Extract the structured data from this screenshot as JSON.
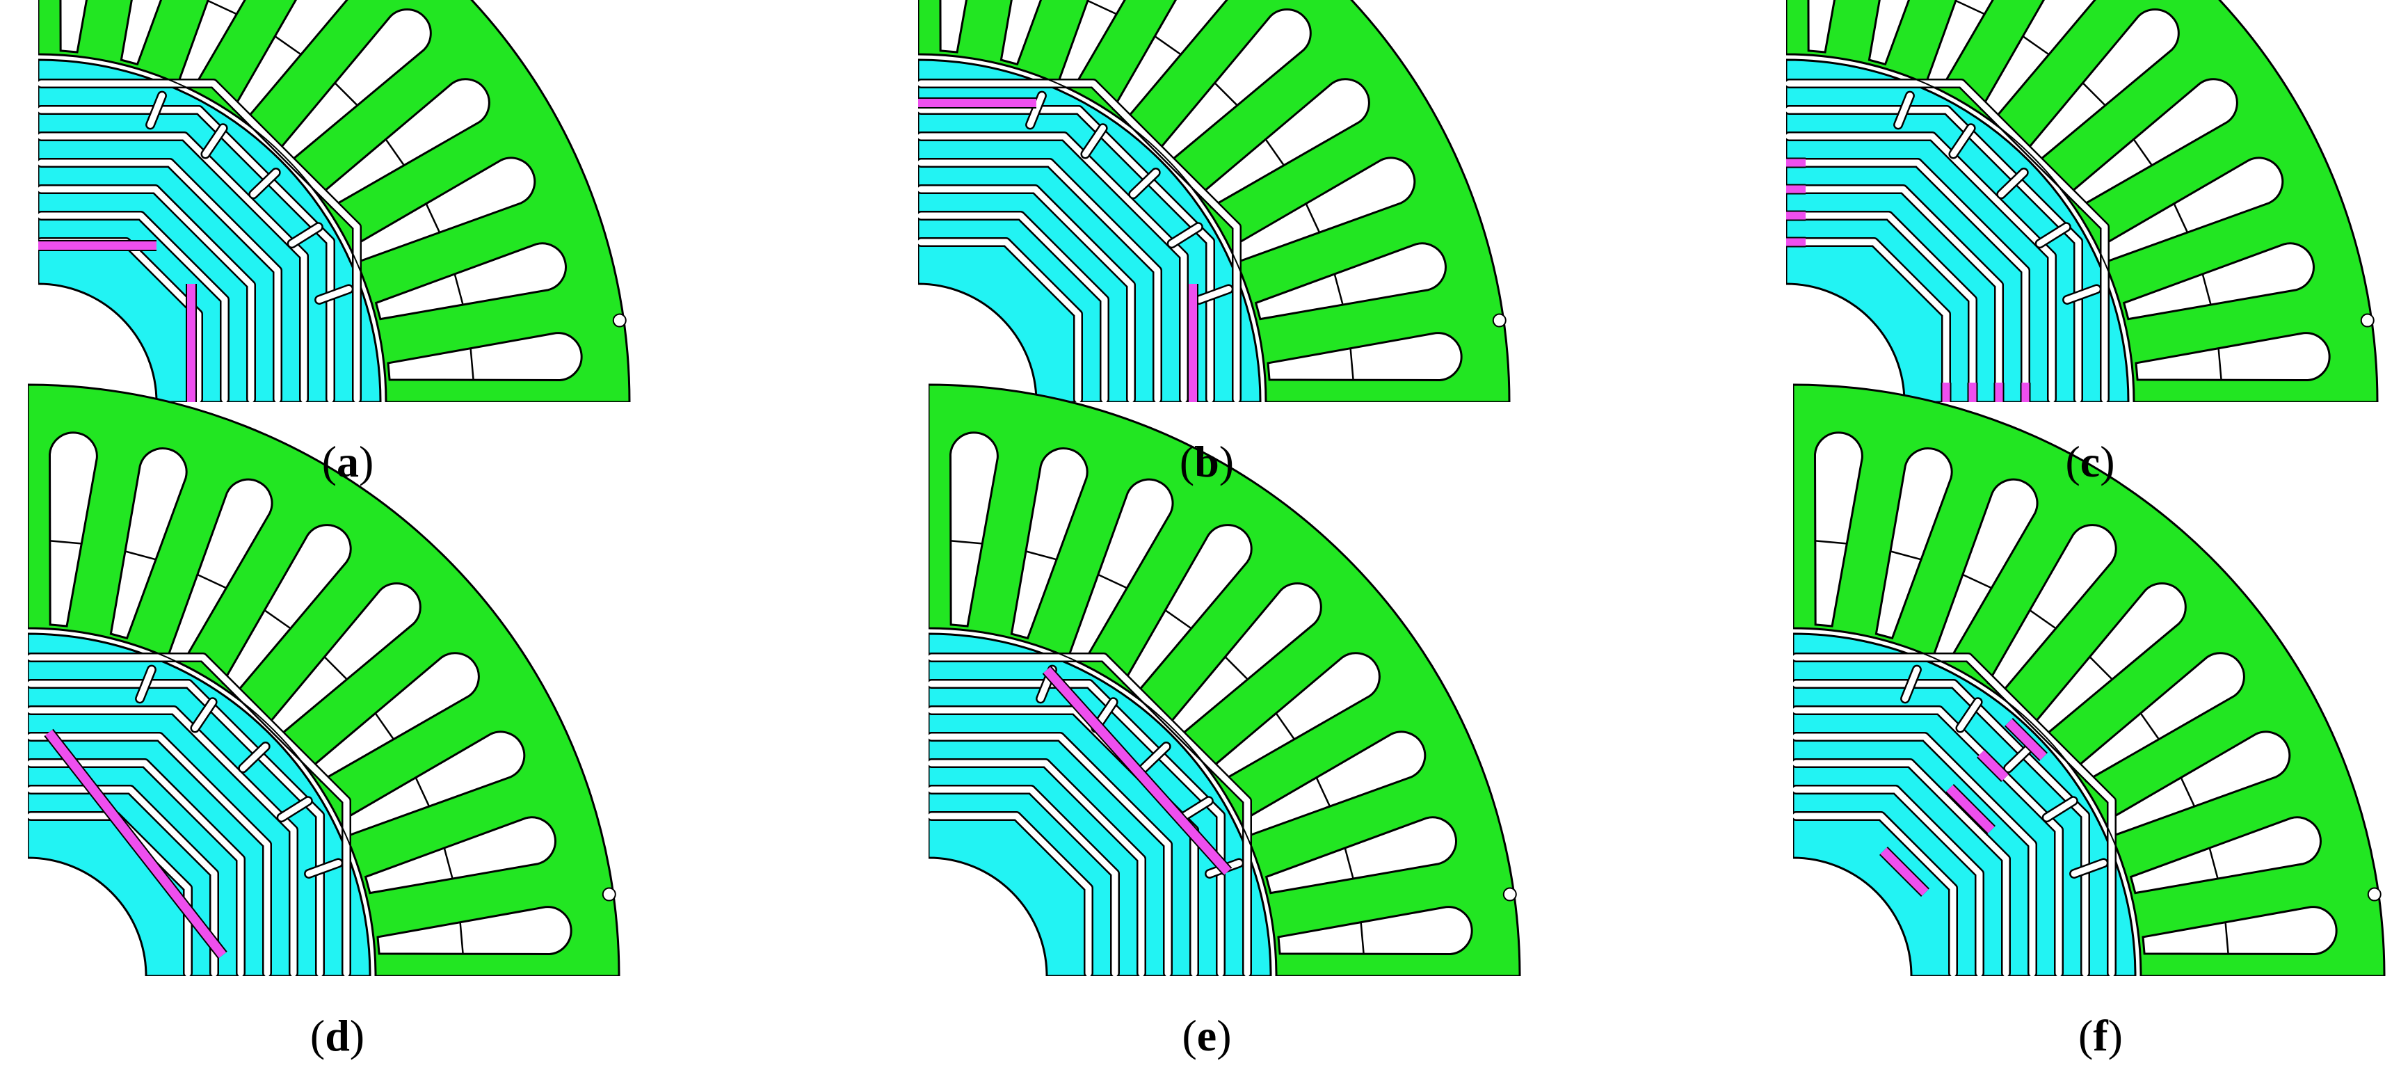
{
  "colors": {
    "stator": "#22e622",
    "rotor": "#22f3f3",
    "barrier": "#ee4fee",
    "outline": "#000000",
    "slot": "#ffffff"
  },
  "panels": [
    {
      "label": "a",
      "barrier_style": "radial-pair"
    },
    {
      "label": "b",
      "barrier_style": "radial-pair-offset"
    },
    {
      "label": "c",
      "barrier_style": "segmented-ribs"
    },
    {
      "label": "d",
      "barrier_style": "diagonal-long"
    },
    {
      "label": "e",
      "barrier_style": "diagonal-outer"
    },
    {
      "label": "f",
      "barrier_style": "diagonal-segmented"
    }
  ]
}
